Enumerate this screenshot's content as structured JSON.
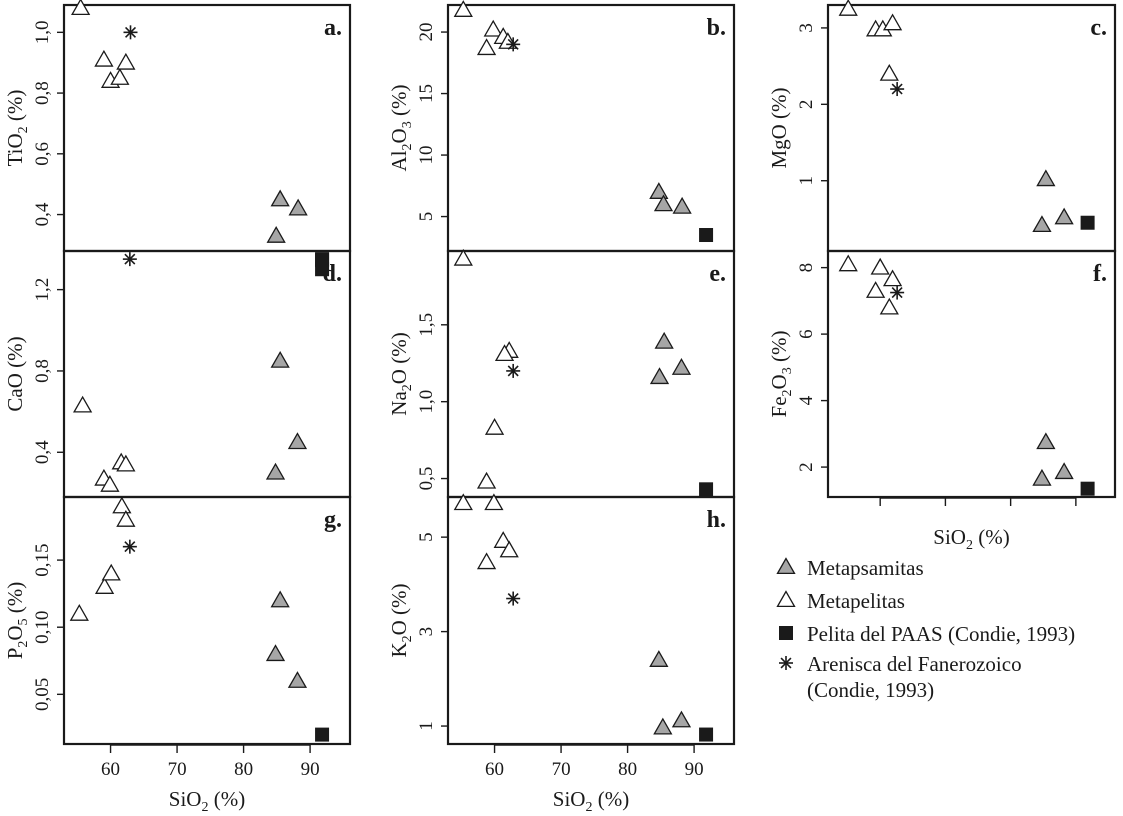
{
  "chart_data": {
    "type": "scatter",
    "shared_xlabel": "SiO2 (%)",
    "shared_xticks": [
      60,
      70,
      80,
      90
    ],
    "series": [
      {
        "key": "metapsamitas",
        "name": "Metapsamitas",
        "marker": "triangle-filled",
        "color": "#a6a6a6"
      },
      {
        "key": "metapelitas",
        "name": "Metapelitas",
        "marker": "triangle-open",
        "color": "#ffffff"
      },
      {
        "key": "paas",
        "name": "Pelita del PAAS (Condie, 1993)",
        "marker": "square-filled",
        "color": "#1a1a1a"
      },
      {
        "key": "fanerozoico",
        "name": "Arenisca del Fanerozoico",
        "name_line2": "(Condie, 1993)",
        "marker": "asterisk",
        "color": "#1a1a1a"
      }
    ],
    "panels": [
      {
        "id": "a",
        "letter": "a.",
        "ylabel": "TiO2 (%)",
        "ylabel_main": "TiO",
        "ylabel_sub": "2",
        "ylabel_tail": " (%)",
        "xlim": [
          53,
          96
        ],
        "ylim": [
          0.28,
          1.09
        ],
        "yticks": [
          0.4,
          0.6,
          0.8,
          1.0
        ],
        "ytick_labels": [
          "0,4",
          "0,6",
          "0,8",
          "1,0"
        ],
        "show_x_axis": false,
        "points": {
          "metapsamitas": [
            [
              85.5,
              0.45
            ],
            [
              88.2,
              0.42
            ],
            [
              84.9,
              0.33
            ]
          ],
          "metapelitas": [
            [
              55.5,
              1.08
            ],
            [
              59.0,
              0.91
            ],
            [
              60.0,
              0.84
            ],
            [
              61.4,
              0.85
            ],
            [
              62.3,
              0.9
            ]
          ],
          "paas": [
            [
              91.8,
              0.25
            ],
            [
              91.8,
              0.22
            ]
          ],
          "fanerozoico": [
            [
              63.0,
              1.0
            ]
          ]
        }
      },
      {
        "id": "b",
        "letter": "b.",
        "ylabel": "Al2O3 (%)",
        "ylabel_main": "Al",
        "ylabel_sub": "2",
        "ylabel_mid": "O",
        "ylabel_sub2": "3",
        "ylabel_tail": " (%)",
        "xlim": [
          53,
          96
        ],
        "ylim": [
          2.2,
          22.2
        ],
        "yticks": [
          5,
          10,
          15,
          20
        ],
        "ytick_labels": [
          "5",
          "10",
          "15",
          "20"
        ],
        "show_x_axis": false,
        "points": {
          "metapsamitas": [
            [
              84.7,
              7.0
            ],
            [
              85.4,
              6.0
            ],
            [
              88.2,
              5.8
            ]
          ],
          "metapelitas": [
            [
              55.3,
              21.8
            ],
            [
              58.8,
              18.7
            ],
            [
              59.8,
              20.2
            ],
            [
              61.3,
              19.6
            ],
            [
              62.0,
              19.2
            ]
          ],
          "paas": [
            [
              91.8,
              3.5
            ]
          ],
          "fanerozoico": [
            [
              62.8,
              19.0
            ]
          ]
        }
      },
      {
        "id": "c",
        "letter": "c.",
        "ylabel": "MgO (%)",
        "ylabel_main": "MgO",
        "ylabel_tail": " (%)",
        "xlim": [
          52,
          96
        ],
        "ylim": [
          0.08,
          3.3
        ],
        "yticks": [
          1,
          2,
          3
        ],
        "ytick_labels": [
          "1",
          "2",
          "3"
        ],
        "show_x_axis": false,
        "points": {
          "metapsamitas": [
            [
              85.4,
              1.02
            ],
            [
              84.8,
              0.42
            ],
            [
              88.2,
              0.52
            ]
          ],
          "metapelitas": [
            [
              55.1,
              3.25
            ],
            [
              59.3,
              2.98
            ],
            [
              60.4,
              2.98
            ],
            [
              61.9,
              3.06
            ],
            [
              61.4,
              2.4
            ]
          ],
          "paas": [
            [
              91.8,
              0.45
            ]
          ],
          "fanerozoico": [
            [
              62.6,
              2.2
            ]
          ]
        }
      },
      {
        "id": "d",
        "letter": "d.",
        "ylabel": "CaO (%)",
        "ylabel_main": "CaO",
        "ylabel_tail": " (%)",
        "xlim": [
          53,
          96
        ],
        "ylim": [
          0.18,
          1.39
        ],
        "yticks": [
          0.4,
          0.8,
          1.2
        ],
        "ytick_labels": [
          "0,4",
          "0,8",
          "1,2"
        ],
        "show_x_axis": false,
        "points": {
          "metapsamitas": [
            [
              85.5,
              0.85
            ],
            [
              88.1,
              0.45
            ],
            [
              84.8,
              0.3
            ]
          ],
          "metapelitas": [
            [
              55.8,
              0.63
            ],
            [
              59.0,
              0.27
            ],
            [
              59.9,
              0.24
            ],
            [
              61.6,
              0.35
            ],
            [
              62.3,
              0.34
            ]
          ],
          "paas": [
            [
              91.8,
              1.35
            ]
          ],
          "fanerozoico": [
            [
              62.9,
              1.35
            ]
          ]
        }
      },
      {
        "id": "e",
        "letter": "e.",
        "ylabel": "Na2O (%)",
        "ylabel_main": "Na",
        "ylabel_sub": "2",
        "ylabel_mid": "O",
        "ylabel_tail": " (%)",
        "xlim": [
          53,
          96
        ],
        "ylim": [
          0.38,
          1.98
        ],
        "yticks": [
          0.5,
          1.0,
          1.5
        ],
        "ytick_labels": [
          "0,5",
          "1,0",
          "1,5"
        ],
        "show_x_axis": false,
        "points": {
          "metapsamitas": [
            [
              85.5,
              1.39
            ],
            [
              88.1,
              1.22
            ],
            [
              84.8,
              1.16
            ]
          ],
          "metapelitas": [
            [
              55.3,
              1.93
            ],
            [
              62.2,
              1.33
            ],
            [
              61.5,
              1.31
            ],
            [
              60.0,
              0.83
            ],
            [
              58.8,
              0.48
            ]
          ],
          "paas": [
            [
              91.8,
              0.43
            ]
          ],
          "fanerozoico": [
            [
              62.8,
              1.2
            ]
          ]
        }
      },
      {
        "id": "f",
        "letter": "f.",
        "ylabel": "Fe2O3 (%)",
        "ylabel_main": "Fe",
        "ylabel_sub": "2",
        "ylabel_mid": "O",
        "ylabel_sub2": "3",
        "ylabel_tail": " (%)",
        "xlim": [
          52,
          96
        ],
        "ylim": [
          1.1,
          8.5
        ],
        "yticks": [
          2,
          4,
          6,
          8
        ],
        "ytick_labels": [
          "2",
          "4",
          "6",
          "8"
        ],
        "show_x_axis": true,
        "xlabel": "SiO2 (%)",
        "xtick_labels_shown": false,
        "points": {
          "metapsamitas": [
            [
              85.4,
              2.75
            ],
            [
              84.8,
              1.65
            ],
            [
              88.2,
              1.85
            ]
          ],
          "metapelitas": [
            [
              55.1,
              8.1
            ],
            [
              60.0,
              8.0
            ],
            [
              59.3,
              7.3
            ],
            [
              61.9,
              7.65
            ],
            [
              61.4,
              6.8
            ]
          ],
          "paas": [
            [
              91.8,
              1.35
            ]
          ],
          "fanerozoico": [
            [
              62.6,
              7.25
            ]
          ]
        }
      },
      {
        "id": "g",
        "letter": "g.",
        "ylabel": "P2O5 (%)",
        "ylabel_main": "P",
        "ylabel_sub": "2",
        "ylabel_mid": "O",
        "ylabel_sub2": "5",
        "ylabel_tail": " (%)",
        "xlim": [
          53,
          96
        ],
        "ylim": [
          0.013,
          0.197
        ],
        "yticks": [
          0.05,
          0.1,
          0.15
        ],
        "ytick_labels": [
          "0,05",
          "0,10",
          "0,15"
        ],
        "show_x_axis": true,
        "xlabel": "SiO2 (%)",
        "xtick_labels_shown": true,
        "points": {
          "metapsamitas": [
            [
              85.5,
              0.12
            ],
            [
              84.8,
              0.08
            ],
            [
              88.1,
              0.06
            ]
          ],
          "metapelitas": [
            [
              55.3,
              0.11
            ],
            [
              59.1,
              0.13
            ],
            [
              60.1,
              0.14
            ],
            [
              61.7,
              0.19
            ],
            [
              62.3,
              0.18
            ]
          ],
          "paas": [
            [
              91.8,
              0.02
            ]
          ],
          "fanerozoico": [
            [
              62.9,
              0.16
            ]
          ]
        }
      },
      {
        "id": "h",
        "letter": "h.",
        "ylabel": "K2O (%)",
        "ylabel_main": "K",
        "ylabel_sub": "2",
        "ylabel_mid": "O",
        "ylabel_tail": " (%)",
        "xlim": [
          53,
          96
        ],
        "ylim": [
          0.62,
          5.85
        ],
        "yticks": [
          1,
          3,
          5
        ],
        "ytick_labels": [
          "1",
          "3",
          "5"
        ],
        "show_x_axis": true,
        "xlabel": "SiO2 (%)",
        "xtick_labels_shown": true,
        "points": {
          "metapsamitas": [
            [
              84.7,
              2.4
            ],
            [
              85.3,
              0.97
            ],
            [
              88.1,
              1.12
            ]
          ],
          "metapelitas": [
            [
              55.3,
              5.72
            ],
            [
              59.9,
              5.72
            ],
            [
              61.3,
              4.92
            ],
            [
              62.2,
              4.72
            ],
            [
              58.8,
              4.47
            ]
          ],
          "paas": [
            [
              91.8,
              0.82
            ]
          ],
          "fanerozoico": [
            [
              62.8,
              3.7
            ]
          ]
        }
      }
    ]
  }
}
